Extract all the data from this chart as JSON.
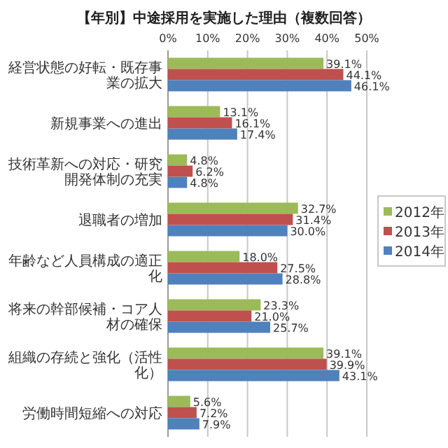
{
  "chart_data": {
    "type": "bar",
    "orientation": "horizontal",
    "title": "【年別】中途採用を実施した理由（複数回答）",
    "categories": [
      "経営状態の好転・既存事業の拡大",
      "新規事業への進出",
      "技術革新への対応・研究開発体制の充実",
      "退職者の増加",
      "年齢など人員構成の適正化",
      "将来の幹部候補・コア人材の確保",
      "組織の存続と強化（活性化）",
      "労働時間短縮への対応"
    ],
    "series": [
      {
        "name": "2012年",
        "color": "#9bbb59",
        "values": [
          39.1,
          13.1,
          4.8,
          32.7,
          18.0,
          23.3,
          39.1,
          5.6
        ],
        "value_labels": [
          "39.1%",
          "13.1%",
          "4.8%",
          "32.7%",
          "18.0%",
          "23.3%",
          "39.1%",
          "5.6%"
        ]
      },
      {
        "name": "2013年",
        "color": "#c0504d",
        "values": [
          44.1,
          16.1,
          6.2,
          31.4,
          27.5,
          21.0,
          39.9,
          7.2
        ],
        "value_labels": [
          "44.1%",
          "16.1%",
          "6.2%",
          "31.4%",
          "27.5%",
          "21.0%",
          "39.9%",
          "7.2%"
        ]
      },
      {
        "name": "2014年",
        "color": "#4f81bd",
        "values": [
          46.1,
          17.4,
          4.8,
          30.0,
          28.8,
          25.7,
          43.1,
          7.9
        ],
        "value_labels": [
          "46.1%",
          "17.4%",
          "4.8%",
          "30.0%",
          "28.8%",
          "25.7%",
          "43.1%",
          "7.9%"
        ]
      }
    ],
    "xlim": [
      0,
      50
    ],
    "xticks": [
      {
        "value": 0,
        "label": "0%"
      },
      {
        "value": 10,
        "label": "10%"
      },
      {
        "value": 20,
        "label": "20%"
      },
      {
        "value": 30,
        "label": "30%"
      },
      {
        "value": 40,
        "label": "40%"
      },
      {
        "value": 50,
        "label": "50%"
      }
    ],
    "grid": "x",
    "legend": "right"
  }
}
